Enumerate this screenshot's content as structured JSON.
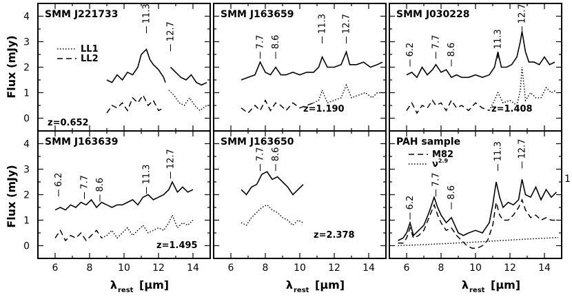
{
  "y_axis_label": "Flux (mJy)",
  "x_axis_label_main": "λ",
  "x_axis_label_sub": "rest",
  "x_axis_label_unit": "[μm]",
  "chart_data": {
    "type": "line",
    "grid": false,
    "xlim": [
      5,
      15
    ],
    "ylim": [
      -0.5,
      4.5
    ],
    "x_ticks": [
      6,
      8,
      10,
      12,
      14
    ],
    "y_ticks": [
      0,
      1,
      2,
      3,
      4
    ],
    "panels": [
      {
        "name": "SMM J221733",
        "redshift": "z=0.652",
        "legend": [
          {
            "style": "dotted",
            "label": "LL1"
          },
          {
            "style": "dashed",
            "label": "LL2"
          }
        ],
        "features": [
          {
            "label": "11.3",
            "x": 11.3,
            "y": 3.6
          },
          {
            "label": "12.7",
            "x": 12.7,
            "y": 2.9
          }
        ],
        "series": [
          {
            "style": "solid",
            "x": [
              9.0,
              9.3,
              9.6,
              9.9,
              10.2,
              10.5,
              10.8,
              11.0,
              11.3,
              11.5,
              11.7,
              12.0,
              12.3,
              12.4
            ],
            "y": [
              1.5,
              1.4,
              1.7,
              1.5,
              1.8,
              1.7,
              2.0,
              2.5,
              2.7,
              2.3,
              2.1,
              1.9,
              1.6,
              1.4
            ]
          },
          {
            "style": "solid",
            "x": [
              12.7,
              13.0,
              13.3,
              13.6,
              13.9,
              14.2,
              14.5,
              14.8
            ],
            "y": [
              2.0,
              1.8,
              1.6,
              1.5,
              1.7,
              1.4,
              1.3,
              1.4
            ]
          },
          {
            "style": "dashed",
            "x": [
              9.0,
              9.3,
              9.6,
              9.9,
              10.2,
              10.5,
              10.8,
              11.1,
              11.4,
              11.7,
              12.0,
              12.3
            ],
            "y": [
              0.2,
              0.5,
              0.4,
              0.6,
              0.3,
              0.8,
              0.6,
              0.9,
              0.5,
              0.7,
              0.3,
              0.4
            ]
          },
          {
            "style": "dotted",
            "x": [
              12.6,
              12.9,
              13.2,
              13.5,
              13.8,
              14.1,
              14.4,
              14.8
            ],
            "y": [
              1.1,
              0.9,
              0.6,
              0.5,
              0.8,
              0.5,
              0.3,
              0.5
            ]
          }
        ]
      },
      {
        "name": "SMM J163659",
        "redshift": "z=1.190",
        "features": [
          {
            "label": "7.7",
            "x": 7.7,
            "y": 2.6
          },
          {
            "label": "8.6",
            "x": 8.6,
            "y": 2.6
          },
          {
            "label": "11.3",
            "x": 11.3,
            "y": 3.2
          },
          {
            "label": "12.7",
            "x": 12.7,
            "y": 3.2
          }
        ],
        "series": [
          {
            "style": "solid",
            "x": [
              6.6,
              7.0,
              7.4,
              7.7,
              8.0,
              8.3,
              8.6,
              8.9,
              9.2,
              9.6,
              10.0,
              10.4,
              10.8,
              11.1,
              11.3,
              11.6,
              12.0,
              12.4,
              12.7,
              12.9,
              13.3,
              13.7,
              14.1,
              14.5,
              14.8
            ],
            "y": [
              1.5,
              1.6,
              1.7,
              2.2,
              1.8,
              1.7,
              2.0,
              1.7,
              1.7,
              1.8,
              1.7,
              1.8,
              1.8,
              2.0,
              2.4,
              2.0,
              2.0,
              2.1,
              2.6,
              2.1,
              2.1,
              2.2,
              2.0,
              2.1,
              2.2
            ]
          },
          {
            "style": "dashed",
            "x": [
              6.6,
              7.0,
              7.4,
              7.7,
              8.0,
              8.3,
              8.6,
              8.9,
              9.2,
              9.6,
              10.0,
              10.4,
              10.8
            ],
            "y": [
              0.4,
              0.2,
              0.5,
              0.3,
              0.7,
              0.3,
              0.6,
              0.5,
              0.3,
              0.6,
              0.4,
              0.5,
              0.6
            ]
          },
          {
            "style": "dotted",
            "x": [
              10.8,
              11.1,
              11.3,
              11.6,
              12.0,
              12.4,
              12.7,
              13.0,
              13.4,
              13.8,
              14.2,
              14.5,
              14.8
            ],
            "y": [
              0.6,
              0.7,
              1.1,
              0.6,
              0.7,
              0.8,
              1.3,
              0.8,
              0.9,
              1.0,
              0.8,
              1.0,
              1.0
            ]
          }
        ]
      },
      {
        "name": "SMM J030228",
        "redshift": "z=1.408",
        "features": [
          {
            "label": "6.2",
            "x": 6.2,
            "y": 2.3
          },
          {
            "label": "7.7",
            "x": 7.7,
            "y": 2.6
          },
          {
            "label": "8.6",
            "x": 8.6,
            "y": 2.3
          },
          {
            "label": "11.3",
            "x": 11.3,
            "y": 2.6
          },
          {
            "label": "12.7",
            "x": 12.7,
            "y": 3.6
          }
        ],
        "series": [
          {
            "style": "solid",
            "x": [
              6.0,
              6.3,
              6.6,
              6.9,
              7.2,
              7.5,
              7.7,
              8.0,
              8.3,
              8.6,
              8.9,
              9.2,
              9.6,
              10.0,
              10.4,
              10.8,
              11.1,
              11.3,
              11.5,
              11.8,
              12.1,
              12.4,
              12.6,
              12.7,
              12.9,
              13.1,
              13.4,
              13.7,
              14.0,
              14.3,
              14.6
            ],
            "y": [
              1.7,
              1.8,
              1.6,
              2.0,
              1.7,
              1.9,
              2.1,
              1.8,
              1.9,
              1.6,
              1.7,
              1.6,
              1.6,
              1.7,
              1.6,
              1.7,
              2.0,
              2.6,
              2.0,
              2.0,
              2.1,
              2.4,
              3.0,
              3.4,
              2.6,
              2.2,
              2.2,
              2.1,
              2.4,
              2.1,
              2.2
            ]
          },
          {
            "style": "dashed",
            "x": [
              6.0,
              6.3,
              6.6,
              6.9,
              7.2,
              7.5,
              7.7,
              8.0,
              8.3,
              8.6,
              8.9,
              9.2,
              9.6,
              10.0,
              10.4,
              10.8
            ],
            "y": [
              0.3,
              0.6,
              0.2,
              0.5,
              0.4,
              0.7,
              0.5,
              0.6,
              0.3,
              0.7,
              0.4,
              0.5,
              0.3,
              0.6,
              0.4,
              0.3
            ]
          },
          {
            "style": "dotted",
            "x": [
              10.8,
              11.1,
              11.3,
              11.6,
              12.0,
              12.4,
              12.6,
              12.7,
              12.9,
              13.2,
              13.5,
              13.8,
              14.1,
              14.4,
              14.7
            ],
            "y": [
              0.3,
              0.7,
              1.0,
              0.6,
              0.7,
              0.5,
              1.1,
              2.0,
              0.7,
              1.0,
              0.8,
              0.8,
              1.2,
              1.0,
              1.1
            ]
          }
        ]
      },
      {
        "name": "SMM J163639",
        "redshift": "z=1.495",
        "features": [
          {
            "label": "6.2",
            "x": 6.2,
            "y": 2.2
          },
          {
            "label": "7.7",
            "x": 7.7,
            "y": 2.1
          },
          {
            "label": "8.6",
            "x": 8.6,
            "y": 2.0
          },
          {
            "label": "11.3",
            "x": 11.3,
            "y": 2.3
          },
          {
            "label": "12.7",
            "x": 12.7,
            "y": 2.9
          }
        ],
        "series": [
          {
            "style": "solid",
            "x": [
              6.0,
              6.3,
              6.6,
              6.9,
              7.2,
              7.5,
              7.8,
              8.1,
              8.4,
              8.7,
              9.0,
              9.3,
              9.6,
              9.9,
              10.2,
              10.5,
              10.8,
              11.1,
              11.4,
              11.7,
              12.0,
              12.3,
              12.6,
              12.8,
              13.1,
              13.4,
              13.7,
              14.0
            ],
            "y": [
              1.4,
              1.5,
              1.4,
              1.6,
              1.5,
              1.7,
              1.6,
              1.8,
              1.5,
              1.7,
              1.6,
              1.5,
              1.6,
              1.6,
              1.7,
              1.8,
              1.6,
              1.9,
              2.0,
              1.8,
              1.9,
              2.0,
              2.2,
              2.5,
              2.1,
              2.3,
              2.1,
              2.2
            ]
          },
          {
            "style": "dashed",
            "x": [
              6.0,
              6.3,
              6.6,
              6.9,
              7.2,
              7.5,
              7.8,
              8.1,
              8.4,
              8.7
            ],
            "y": [
              0.3,
              0.6,
              0.2,
              0.4,
              0.3,
              0.5,
              0.2,
              0.4,
              0.6,
              0.3
            ]
          },
          {
            "style": "dotted",
            "x": [
              8.7,
              9.0,
              9.3,
              9.6,
              9.9,
              10.2,
              10.5,
              10.8,
              11.1,
              11.4,
              11.7,
              12.0,
              12.3,
              12.6,
              12.8,
              13.1,
              13.4,
              13.7,
              14.0
            ],
            "y": [
              0.3,
              0.4,
              0.6,
              0.3,
              0.5,
              0.7,
              0.4,
              0.6,
              0.8,
              0.5,
              0.6,
              0.7,
              0.6,
              0.9,
              1.2,
              0.7,
              0.9,
              0.8,
              1.0
            ]
          }
        ]
      },
      {
        "name": "SMM J163650",
        "redshift": "z=2.378",
        "features": [
          {
            "label": "7.7",
            "x": 7.7,
            "y": 3.2
          },
          {
            "label": "8.6",
            "x": 8.6,
            "y": 3.2
          }
        ],
        "series": [
          {
            "style": "solid",
            "x": [
              6.6,
              6.9,
              7.2,
              7.5,
              7.8,
              8.1,
              8.4,
              8.7,
              9.0,
              9.3,
              9.6,
              9.9,
              10.2
            ],
            "y": [
              2.2,
              2.0,
              2.3,
              2.4,
              2.8,
              2.9,
              2.6,
              2.7,
              2.5,
              2.3,
              2.0,
              2.2,
              2.4
            ]
          },
          {
            "style": "dotted",
            "x": [
              6.6,
              6.9,
              7.2,
              7.5,
              7.8,
              8.1,
              8.4,
              8.7,
              9.0,
              9.3,
              9.6,
              9.9,
              10.2
            ],
            "y": [
              0.9,
              0.8,
              1.1,
              1.3,
              1.5,
              1.6,
              1.4,
              1.3,
              1.1,
              1.0,
              0.8,
              1.0,
              0.9
            ]
          }
        ]
      },
      {
        "name": "PAH sample",
        "legend": [
          {
            "style": "dashed",
            "label": "M82"
          },
          {
            "style": "dotted",
            "label": "ν",
            "sup": "2.9"
          }
        ],
        "features": [
          {
            "label": "6.2",
            "x": 6.2,
            "y": 1.3
          },
          {
            "label": "7.7",
            "x": 7.7,
            "y": 2.2
          },
          {
            "label": "8.6",
            "x": 8.6,
            "y": 1.7
          },
          {
            "label": "11.3",
            "x": 11.3,
            "y": 3.2
          },
          {
            "label": "12.7",
            "x": 12.7,
            "y": 3.3
          }
        ],
        "right_axis_label": "1",
        "series": [
          {
            "style": "solid",
            "x": [
              5.5,
              5.8,
              6.0,
              6.2,
              6.4,
              6.7,
              7.0,
              7.3,
              7.6,
              7.8,
              8.0,
              8.3,
              8.6,
              8.8,
              9.0,
              9.3,
              9.6,
              10.0,
              10.4,
              10.8,
              11.0,
              11.2,
              11.4,
              11.6,
              11.9,
              12.2,
              12.5,
              12.7,
              12.9,
              13.2,
              13.5,
              13.8,
              14.1,
              14.4,
              14.7
            ],
            "y": [
              0.2,
              0.3,
              0.5,
              0.9,
              0.4,
              0.6,
              0.8,
              1.3,
              1.9,
              1.5,
              1.2,
              0.9,
              1.1,
              0.8,
              0.5,
              0.4,
              0.5,
              0.6,
              0.5,
              0.9,
              1.6,
              2.5,
              1.9,
              1.5,
              1.7,
              1.6,
              1.8,
              2.6,
              2.0,
              1.9,
              2.3,
              1.8,
              2.2,
              1.9,
              2.1
            ]
          },
          {
            "style": "dashed",
            "x": [
              5.5,
              5.8,
              6.0,
              6.2,
              6.4,
              6.7,
              7.0,
              7.3,
              7.6,
              7.8,
              8.0,
              8.3,
              8.6,
              8.9,
              9.2,
              9.5,
              9.8,
              10.1,
              10.4,
              10.7,
              11.0,
              11.2,
              11.4,
              11.6,
              11.9,
              12.2,
              12.5,
              12.7,
              12.9,
              13.2,
              13.5,
              13.8,
              14.1,
              14.4,
              14.7
            ],
            "y": [
              0.1,
              0.1,
              0.3,
              0.7,
              0.3,
              0.4,
              0.6,
              1.1,
              1.6,
              1.2,
              0.9,
              0.6,
              0.7,
              0.4,
              0.2,
              0.0,
              -0.1,
              -0.1,
              0.0,
              0.2,
              0.8,
              1.7,
              1.2,
              1.0,
              1.0,
              1.2,
              1.5,
              1.8,
              1.4,
              1.1,
              1.2,
              1.0,
              1.1,
              1.0,
              1.0
            ]
          },
          {
            "style": "dotted",
            "x": [
              5.5,
              7.0,
              8.5,
              10.0,
              11.5,
              13.0,
              14.8
            ],
            "y": [
              0.0,
              0.04,
              0.09,
              0.14,
              0.2,
              0.26,
              0.32
            ]
          }
        ]
      }
    ]
  }
}
